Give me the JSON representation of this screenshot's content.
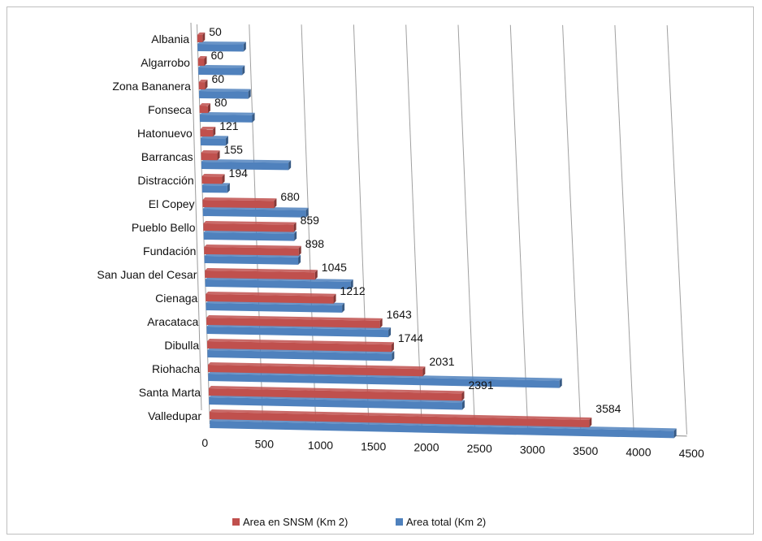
{
  "chart_data": {
    "type": "bar",
    "orientation": "horizontal",
    "style": "3d-clustered",
    "title": "",
    "xlabel": "",
    "ylabel": "",
    "xlim": [
      0,
      4500
    ],
    "x_ticks": [
      "0",
      "500",
      "1000",
      "1500",
      "2000",
      "2500",
      "3000",
      "3500",
      "4000",
      "4500"
    ],
    "grid": true,
    "legend_position": "bottom",
    "categories": [
      "Albania",
      "Algarrobo",
      "Zona Bananera",
      "Fonseca",
      "Hatonuevo",
      "Barrancas",
      "Distracción",
      "El Copey",
      "Pueblo Bello",
      "Fundación",
      "San Juan del Cesar",
      "Cienaga",
      "Aracataca",
      "Dibulla",
      "Riohacha",
      "Santa Marta",
      "Valledupar"
    ],
    "series": [
      {
        "name": "Area en SNSM (Km 2)",
        "color": "#c0504d",
        "values": [
          50,
          60,
          60,
          80,
          121,
          155,
          194,
          680,
          859,
          898,
          1045,
          1212,
          1643,
          1744,
          2031,
          2391,
          3584
        ],
        "data_labels": [
          "50",
          "60",
          "60",
          "80",
          "121",
          "155",
          "194",
          "680",
          "859",
          "898",
          "1045",
          "1212",
          "1643",
          "1744",
          "2031",
          "2391",
          "3584"
        ]
      },
      {
        "name": "Area total (Km 2)",
        "color": "#4f81bd",
        "values": [
          440,
          420,
          470,
          500,
          240,
          830,
          240,
          980,
          860,
          890,
          1380,
          1290,
          1720,
          1744,
          3320,
          2391,
          4380
        ]
      }
    ]
  }
}
